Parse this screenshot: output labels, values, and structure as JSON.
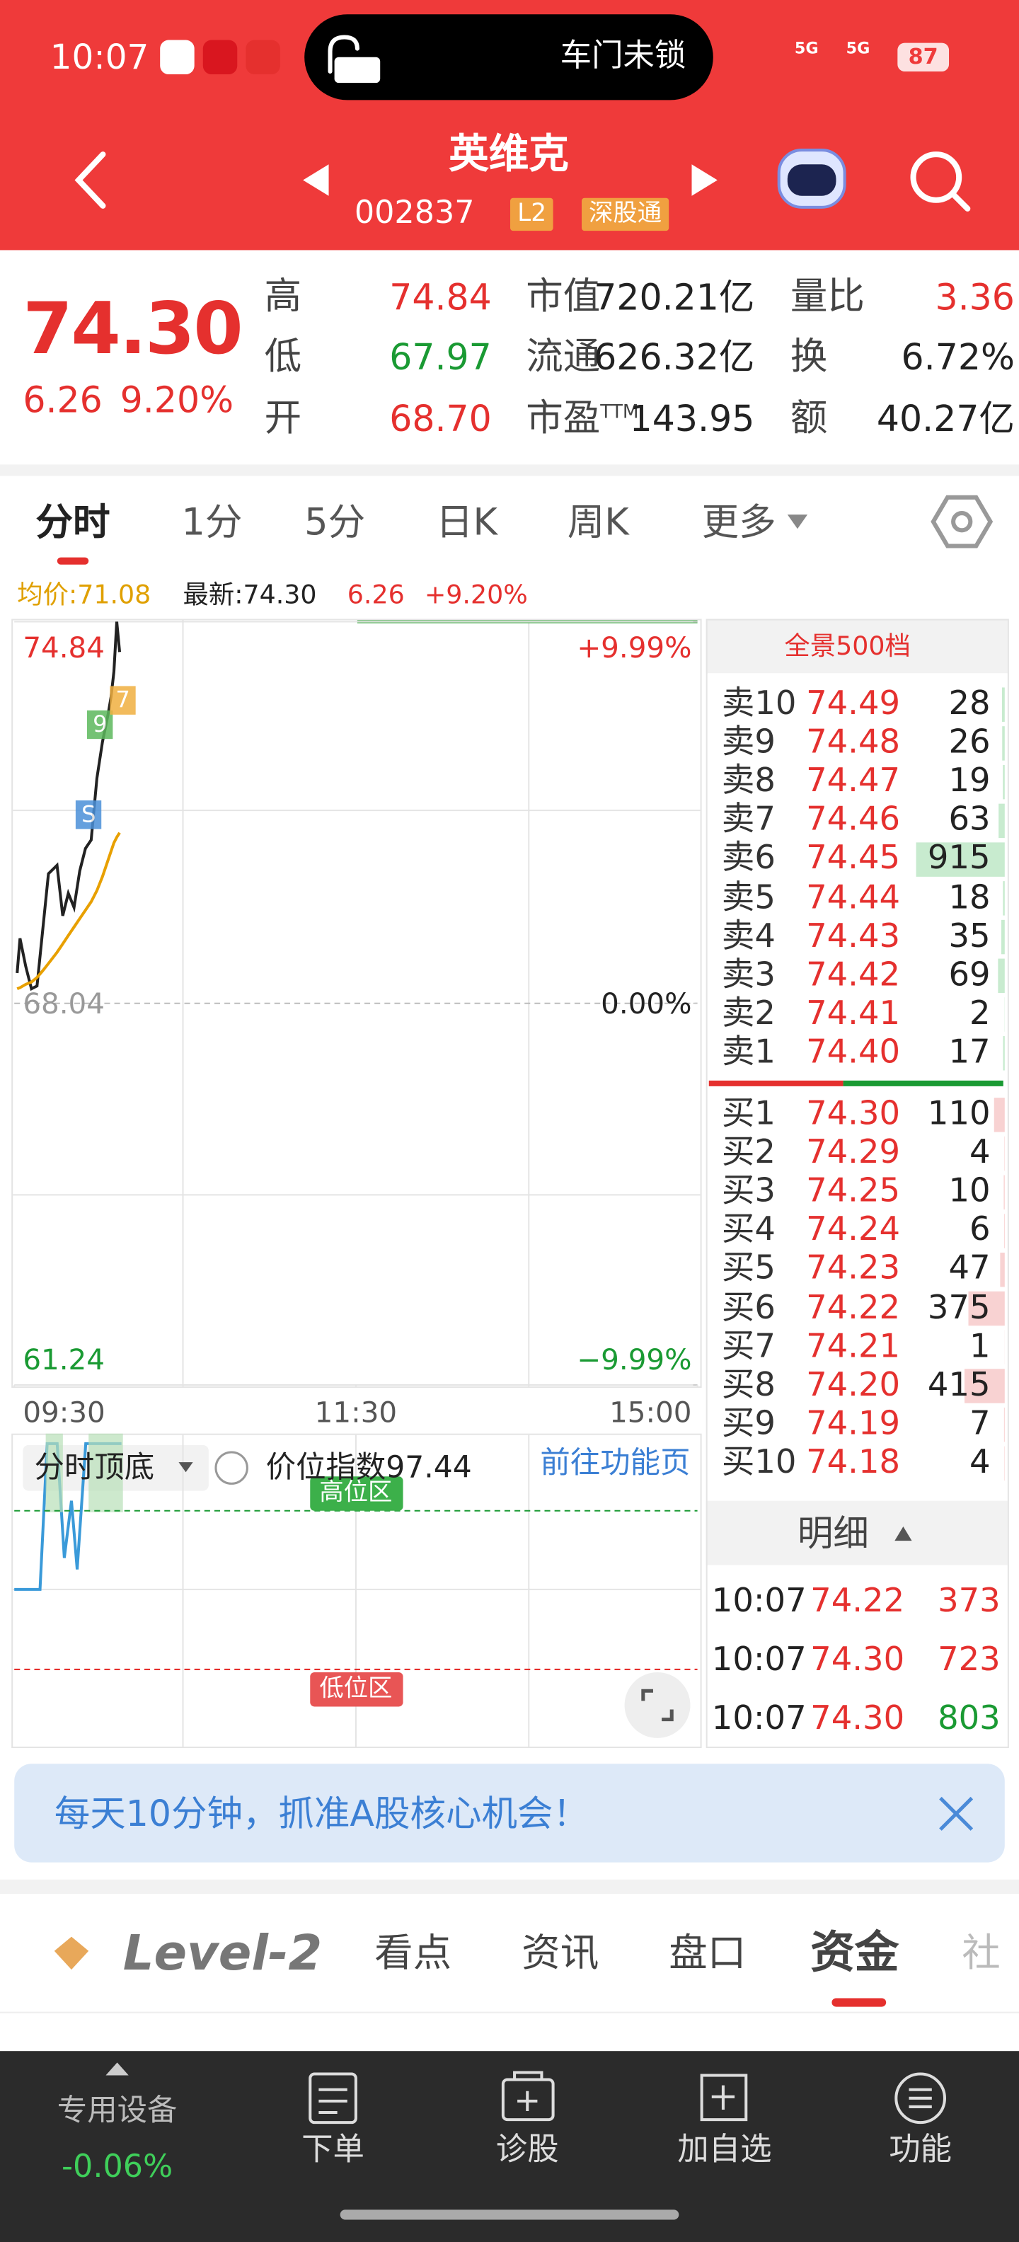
{
  "status_bar": {
    "time": "10:07",
    "island": "车门未锁",
    "network": [
      "5G",
      "5G"
    ],
    "battery": "87"
  },
  "header": {
    "name": "英维克",
    "code": "002837",
    "badges": [
      "L2",
      "深股通"
    ]
  },
  "quote": {
    "price": "74.30",
    "change": "6.26",
    "change_pct": "9.20%",
    "stats": [
      {
        "label": "高",
        "value": "74.84",
        "color": "#e5302e"
      },
      {
        "label": "低",
        "value": "67.97",
        "color": "#1a9a33"
      },
      {
        "label": "开",
        "value": "68.70",
        "color": "#e5302e"
      },
      {
        "label": "市值",
        "value": "720.21亿",
        "color": "#222222"
      },
      {
        "label": "流通",
        "value": "626.32亿",
        "color": "#222222"
      },
      {
        "label": "市盈",
        "sup": "TTM",
        "value": "143.95",
        "color": "#222222"
      },
      {
        "label": "量比",
        "value": "3.36",
        "color": "#e5302e"
      },
      {
        "label": "换",
        "value": "6.72%",
        "color": "#222222"
      },
      {
        "label": "额",
        "value": "40.27亿",
        "color": "#222222"
      }
    ]
  },
  "tabs": [
    "分时",
    "1分",
    "5分",
    "日K",
    "周K",
    "更多"
  ],
  "chart_info": {
    "avg": "均价:71.08",
    "latest": "最新:74.30",
    "change": "6.26",
    "pct": "+9.20%"
  },
  "chart_data": {
    "type": "line",
    "x": [
      1,
      2,
      4,
      6,
      8,
      10,
      12,
      15,
      17,
      19,
      21,
      23,
      25,
      27,
      29,
      31,
      33,
      34,
      35,
      36,
      37
    ],
    "series": [
      {
        "color": "#222222",
        "values": [
          68.58,
          69.2,
          68.7,
          68.3,
          68.35,
          69.35,
          70.35,
          70.5,
          69.6,
          70.0,
          69.75,
          70.4,
          70.8,
          70.95,
          72.05,
          72.7,
          73.2,
          73.5,
          73.95,
          74.84,
          74.3
        ]
      },
      {
        "color": "#e8a000",
        "values": [
          68.3,
          68.32,
          68.38,
          68.42,
          68.5,
          68.62,
          68.75,
          68.95,
          69.1,
          69.25,
          69.4,
          69.55,
          69.7,
          69.85,
          70.05,
          70.3,
          70.6,
          70.75,
          70.9,
          71.0,
          71.08
        ]
      }
    ],
    "xlim": [
      0,
      240
    ],
    "xticks": [
      {
        "value": 0,
        "label": "09:30"
      },
      {
        "value": 120,
        "label": "11:30"
      },
      {
        "value": 240,
        "label": "15:00"
      }
    ],
    "ylim": [
      61.24,
      74.84
    ],
    "yticks": [
      74.84,
      68.04,
      61.24
    ],
    "y2lim": [
      -9.99,
      9.99
    ],
    "y2ticks": [
      {
        "value": 9.99,
        "label": "+9.99%"
      },
      {
        "value": 0,
        "label": "0.00%"
      },
      {
        "value": -9.99,
        "label": "−9.99%"
      }
    ],
    "annotations": [
      "S",
      "9",
      "7"
    ]
  },
  "indicator": {
    "name": "分时顶底",
    "index": "价位指数97.44",
    "link": "前往功能页",
    "high_zone": "高位区",
    "low_zone": "低位区"
  },
  "order_book": {
    "title": "全景500档",
    "sells": [
      {
        "label": "卖10",
        "price": "74.49",
        "volume": 28
      },
      {
        "label": "卖9",
        "price": "74.48",
        "volume": 26
      },
      {
        "label": "卖8",
        "price": "74.47",
        "volume": 19
      },
      {
        "label": "卖7",
        "price": "74.46",
        "volume": 63
      },
      {
        "label": "卖6",
        "price": "74.45",
        "volume": 915
      },
      {
        "label": "卖5",
        "price": "74.44",
        "volume": 18
      },
      {
        "label": "卖4",
        "price": "74.43",
        "volume": 35
      },
      {
        "label": "卖3",
        "price": "74.42",
        "volume": 69
      },
      {
        "label": "卖2",
        "price": "74.41",
        "volume": 2
      },
      {
        "label": "卖1",
        "price": "74.40",
        "volume": 17
      }
    ],
    "buys": [
      {
        "label": "买1",
        "price": "74.30",
        "volume": 110
      },
      {
        "label": "买2",
        "price": "74.29",
        "volume": 4
      },
      {
        "label": "买3",
        "price": "74.25",
        "volume": 10
      },
      {
        "label": "买4",
        "price": "74.24",
        "volume": 6
      },
      {
        "label": "买5",
        "price": "74.23",
        "volume": 47
      },
      {
        "label": "买6",
        "price": "74.22",
        "volume": 375
      },
      {
        "label": "买7",
        "price": "74.21",
        "volume": 1
      },
      {
        "label": "买8",
        "price": "74.20",
        "volume": 415
      },
      {
        "label": "买9",
        "price": "74.19",
        "volume": 7
      },
      {
        "label": "买10",
        "price": "74.18",
        "volume": 4
      }
    ]
  },
  "details": {
    "title": "明细",
    "rows": [
      {
        "time": "10:07",
        "price": "74.22",
        "volume": 373,
        "color": "#e5302e"
      },
      {
        "time": "10:07",
        "price": "74.30",
        "volume": 723,
        "color": "#e5302e"
      },
      {
        "time": "10:07",
        "price": "74.30",
        "volume": 803,
        "color": "#1a9a33"
      }
    ]
  },
  "banner": {
    "text": "每天10分钟，抓准A股核心机会！"
  },
  "section_tabs": [
    "Level-2",
    "看点",
    "资讯",
    "盘口",
    "资金",
    "社"
  ],
  "bottom_nav": {
    "sector": "专用设备",
    "sector_change": "-0.06%",
    "items": [
      "下单",
      "诊股",
      "加自选",
      "功能"
    ]
  }
}
